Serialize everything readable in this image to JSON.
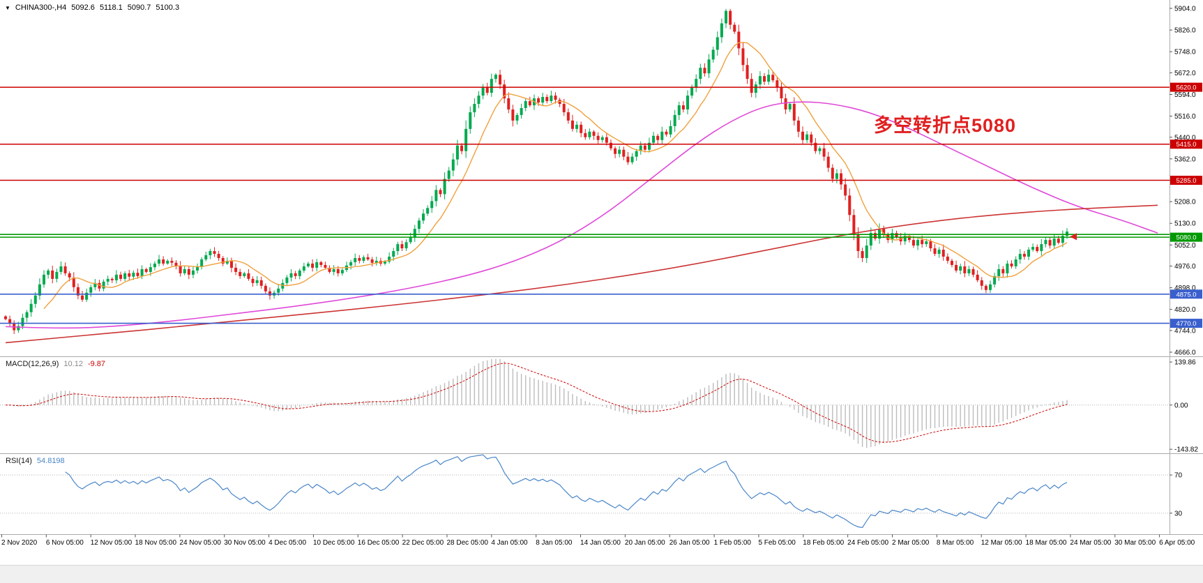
{
  "titlebar": {
    "marker_icon": "▼",
    "symbol": "CHINA300-,H4",
    "open": "5092.6",
    "high": "5118.1",
    "low": "5090.7",
    "close": "5100.3"
  },
  "annotation": {
    "text": "多空转折点5080",
    "color": "#e02020"
  },
  "macd": {
    "label": "MACD(12,26,9)",
    "value_main": "10.12",
    "value_signal": "-9.87",
    "axis": [
      {
        "text": "139.86",
        "value": 139.86
      },
      {
        "text": "0.00",
        "value": 0
      },
      {
        "text": "-143.82",
        "value": -143.82
      }
    ]
  },
  "rsi": {
    "label": "RSI(14)",
    "value": "54.8198",
    "levels": [
      70,
      30
    ],
    "axis": [
      {
        "text": "70",
        "value": 70
      },
      {
        "text": "30",
        "value": 30
      }
    ]
  },
  "colors": {
    "up": "#00a94f",
    "down": "#e02020",
    "ma_fast": "#f0a03c",
    "ma_mid": "#e048d8",
    "ma_slow": "#cc3333",
    "line_red": "#cc0000",
    "line_green": "#009900",
    "line_blue": "#3a5fcd",
    "macd_hist": "#bcbcbc",
    "macd_signal": "#cc0000",
    "rsi_line": "#4a86c8",
    "axis_text": "#000000",
    "panel_border": "#a8a8a8"
  },
  "chart_data": {
    "type": "candlestick",
    "symbol": "CHINA300-",
    "timeframe": "H4",
    "ylim": [
      4666,
      5904
    ],
    "first_open": 4795,
    "last_price_arrow": 5082,
    "closes": [
      4785,
      4770,
      4745,
      4760,
      4790,
      4810,
      4840,
      4870,
      4910,
      4945,
      4960,
      4930,
      4955,
      4975,
      4950,
      4935,
      4900,
      4870,
      4855,
      4880,
      4900,
      4915,
      4895,
      4920,
      4930,
      4925,
      4945,
      4930,
      4950,
      4938,
      4952,
      4940,
      4965,
      4955,
      4972,
      4985,
      5000,
      4985,
      4995,
      4988,
      4975,
      4950,
      4965,
      4945,
      4960,
      4975,
      5000,
      5015,
      5030,
      5020,
      5005,
      4985,
      4995,
      4970,
      4955,
      4940,
      4950,
      4930,
      4915,
      4925,
      4905,
      4885,
      4870,
      4880,
      4895,
      4915,
      4935,
      4950,
      4940,
      4960,
      4975,
      4985,
      4970,
      4990,
      4980,
      4970,
      4955,
      4965,
      4950,
      4962,
      4978,
      4990,
      5005,
      4995,
      5008,
      5000,
      4988,
      4995,
      4985,
      4992,
      5010,
      5030,
      5055,
      5040,
      5062,
      5080,
      5110,
      5140,
      5165,
      5185,
      5210,
      5250,
      5235,
      5290,
      5320,
      5360,
      5410,
      5390,
      5470,
      5530,
      5560,
      5590,
      5620,
      5600,
      5650,
      5665,
      5630,
      5580,
      5540,
      5500,
      5520,
      5545,
      5570,
      5555,
      5580,
      5565,
      5585,
      5570,
      5590,
      5575,
      5560,
      5530,
      5500,
      5470,
      5485,
      5455,
      5440,
      5460,
      5445,
      5430,
      5440,
      5420,
      5400,
      5380,
      5395,
      5370,
      5350,
      5370,
      5390,
      5410,
      5395,
      5420,
      5445,
      5430,
      5460,
      5450,
      5480,
      5520,
      5555,
      5540,
      5590,
      5620,
      5650,
      5690,
      5670,
      5720,
      5755,
      5800,
      5850,
      5895,
      5845,
      5820,
      5760,
      5700,
      5650,
      5600,
      5630,
      5660,
      5640,
      5665,
      5645,
      5620,
      5580,
      5540,
      5560,
      5500,
      5460,
      5430,
      5450,
      5420,
      5390,
      5400,
      5370,
      5330,
      5290,
      5310,
      5270,
      5230,
      5160,
      5090,
      5030,
      5005,
      5050,
      5095,
      5075,
      5110,
      5090,
      5070,
      5095,
      5080,
      5065,
      5085,
      5070,
      5050,
      5070,
      5055,
      5065,
      5040,
      5020,
      5035,
      5010,
      4995,
      4980,
      4960,
      4975,
      4950,
      4965,
      4945,
      4925,
      4905,
      4890,
      4910,
      4940,
      4965,
      4950,
      4985,
      4975,
      5000,
      5020,
      5010,
      5035,
      5045,
      5030,
      5055,
      5070,
      5050,
      5075,
      5060,
      5085,
      5100.3
    ],
    "horizontal_lines": [
      {
        "value": 5620.0,
        "color": "red",
        "tag": "5620.0"
      },
      {
        "value": 5415.0,
        "color": "red",
        "tag": "5415.0"
      },
      {
        "value": 5285.0,
        "color": "red",
        "tag": "5285.0"
      },
      {
        "value": 5090.0,
        "color": "green",
        "tag": null
      },
      {
        "value": 5080.0,
        "color": "green",
        "tag": "5080.0"
      },
      {
        "value": 4875.0,
        "color": "blue",
        "tag": "4875.0"
      },
      {
        "value": 4770.0,
        "color": "blue",
        "tag": "4770.0"
      }
    ],
    "ma_fast_period": 10,
    "ma_mid_points": [
      [
        0,
        4758
      ],
      [
        0.05,
        4750
      ],
      [
        0.1,
        4760
      ],
      [
        0.15,
        4780
      ],
      [
        0.2,
        4805
      ],
      [
        0.25,
        4830
      ],
      [
        0.3,
        4860
      ],
      [
        0.35,
        4895
      ],
      [
        0.4,
        4940
      ],
      [
        0.44,
        4990
      ],
      [
        0.48,
        5060
      ],
      [
        0.52,
        5160
      ],
      [
        0.56,
        5290
      ],
      [
        0.6,
        5420
      ],
      [
        0.63,
        5500
      ],
      [
        0.66,
        5555
      ],
      [
        0.69,
        5570
      ],
      [
        0.72,
        5560
      ],
      [
        0.75,
        5530
      ],
      [
        0.78,
        5480
      ],
      [
        0.81,
        5420
      ],
      [
        0.85,
        5340
      ],
      [
        0.89,
        5260
      ],
      [
        0.93,
        5190
      ],
      [
        0.97,
        5140
      ],
      [
        1,
        5095
      ]
    ],
    "ma_slow_points": [
      [
        0,
        4700
      ],
      [
        0.08,
        4730
      ],
      [
        0.16,
        4762
      ],
      [
        0.24,
        4795
      ],
      [
        0.32,
        4828
      ],
      [
        0.4,
        4865
      ],
      [
        0.48,
        4905
      ],
      [
        0.56,
        4955
      ],
      [
        0.62,
        5000
      ],
      [
        0.68,
        5050
      ],
      [
        0.74,
        5098
      ],
      [
        0.8,
        5135
      ],
      [
        0.86,
        5162
      ],
      [
        0.92,
        5180
      ],
      [
        1,
        5195
      ]
    ],
    "price_tick_labels": [
      "5904.0",
      "5826.0",
      "5748.0",
      "5672.0",
      "5594.0",
      "5516.0",
      "5440.0",
      "5362.0",
      "5285.0",
      "5208.0",
      "5130.0",
      "5052.0",
      "4976.0",
      "4898.0",
      "4820.0",
      "4744.0",
      "4666.0"
    ],
    "time_tick_labels": [
      "2 Nov 2020",
      "6 Nov 05:00",
      "12 Nov 05:00",
      "18 Nov 05:00",
      "24 Nov 05:00",
      "30 Nov 05:00",
      "4 Dec 05:00",
      "10 Dec 05:00",
      "16 Dec 05:00",
      "22 Dec 05:00",
      "28 Dec 05:00",
      "4 Jan 05:00",
      "8 Jan 05:00",
      "14 Jan 05:00",
      "20 Jan 05:00",
      "26 Jan 05:00",
      "1 Feb 05:00",
      "5 Feb 05:00",
      "18 Feb 05:00",
      "24 Feb 05:00",
      "2 Mar 05:00",
      "8 Mar 05:00",
      "12 Mar 05:00",
      "18 Mar 05:00",
      "24 Mar 05:00",
      "30 Mar 05:00",
      "6 Apr 05:00"
    ]
  }
}
